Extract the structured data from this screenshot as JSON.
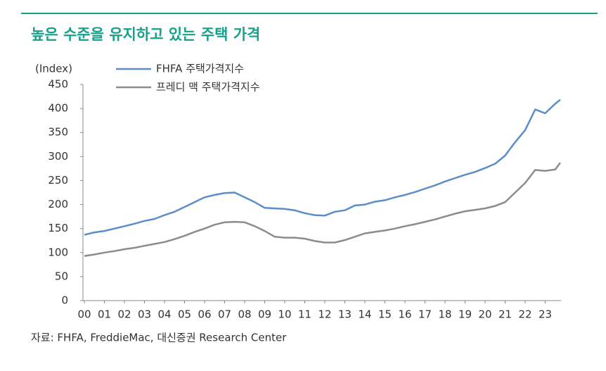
{
  "chart_data": {
    "type": "line",
    "title": "높은 수준을 유지하고 있는 주택 가격",
    "y_label": "(Index)",
    "source": "자료: FHFA, FreddieMac, 대신증권 Research Center",
    "x": [
      2000,
      2000.5,
      2001,
      2001.5,
      2002,
      2002.5,
      2003,
      2003.5,
      2004,
      2004.5,
      2005,
      2005.5,
      2006,
      2006.5,
      2007,
      2007.5,
      2008,
      2008.5,
      2009,
      2009.5,
      2010,
      2010.5,
      2011,
      2011.5,
      2012,
      2012.5,
      2013,
      2013.5,
      2014,
      2014.5,
      2015,
      2015.5,
      2016,
      2016.5,
      2017,
      2017.5,
      2018,
      2018.5,
      2019,
      2019.5,
      2020,
      2020.5,
      2021,
      2021.5,
      2022,
      2022.5,
      2023,
      2023.5,
      2023.75
    ],
    "series": [
      {
        "name": "FHFA 주택가격지수",
        "color": "#5b8ec9",
        "values": [
          137,
          142,
          145,
          150,
          155,
          160,
          166,
          170,
          178,
          185,
          195,
          205,
          215,
          220,
          224,
          225,
          215,
          205,
          193,
          192,
          191,
          188,
          182,
          178,
          177,
          185,
          188,
          198,
          200,
          206,
          209,
          215,
          220,
          226,
          233,
          240,
          248,
          255,
          262,
          268,
          276,
          285,
          302,
          330,
          355,
          398,
          390,
          410,
          418
        ]
      },
      {
        "name": "프레디 맥 주택가격지수",
        "color": "#8c8c8c",
        "values": [
          93,
          96,
          100,
          103,
          107,
          110,
          114,
          118,
          122,
          128,
          135,
          143,
          150,
          158,
          163,
          164,
          163,
          155,
          145,
          133,
          131,
          131,
          129,
          124,
          121,
          121,
          126,
          133,
          140,
          143,
          146,
          150,
          155,
          159,
          164,
          169,
          175,
          181,
          186,
          189,
          192,
          197,
          205,
          225,
          245,
          272,
          270,
          273,
          287
        ]
      }
    ],
    "xlim": [
      2000,
      2024
    ],
    "xticks": [
      {
        "value": 2000,
        "label": "00"
      },
      {
        "value": 2001,
        "label": "01"
      },
      {
        "value": 2002,
        "label": "02"
      },
      {
        "value": 2003,
        "label": "03"
      },
      {
        "value": 2004,
        "label": "04"
      },
      {
        "value": 2005,
        "label": "05"
      },
      {
        "value": 2006,
        "label": "06"
      },
      {
        "value": 2007,
        "label": "07"
      },
      {
        "value": 2008,
        "label": "08"
      },
      {
        "value": 2009,
        "label": "09"
      },
      {
        "value": 2010,
        "label": "10"
      },
      {
        "value": 2011,
        "label": "11"
      },
      {
        "value": 2012,
        "label": "12"
      },
      {
        "value": 2013,
        "label": "13"
      },
      {
        "value": 2014,
        "label": "14"
      },
      {
        "value": 2015,
        "label": "15"
      },
      {
        "value": 2016,
        "label": "16"
      },
      {
        "value": 2017,
        "label": "17"
      },
      {
        "value": 2018,
        "label": "18"
      },
      {
        "value": 2019,
        "label": "19"
      },
      {
        "value": 2020,
        "label": "20"
      },
      {
        "value": 2021,
        "label": "21"
      },
      {
        "value": 2022,
        "label": "22"
      },
      {
        "value": 2023,
        "label": "23"
      }
    ],
    "ylim": [
      0,
      450
    ],
    "yticks": [
      0,
      50,
      100,
      150,
      200,
      250,
      300,
      350,
      400,
      450
    ],
    "grid": false
  }
}
